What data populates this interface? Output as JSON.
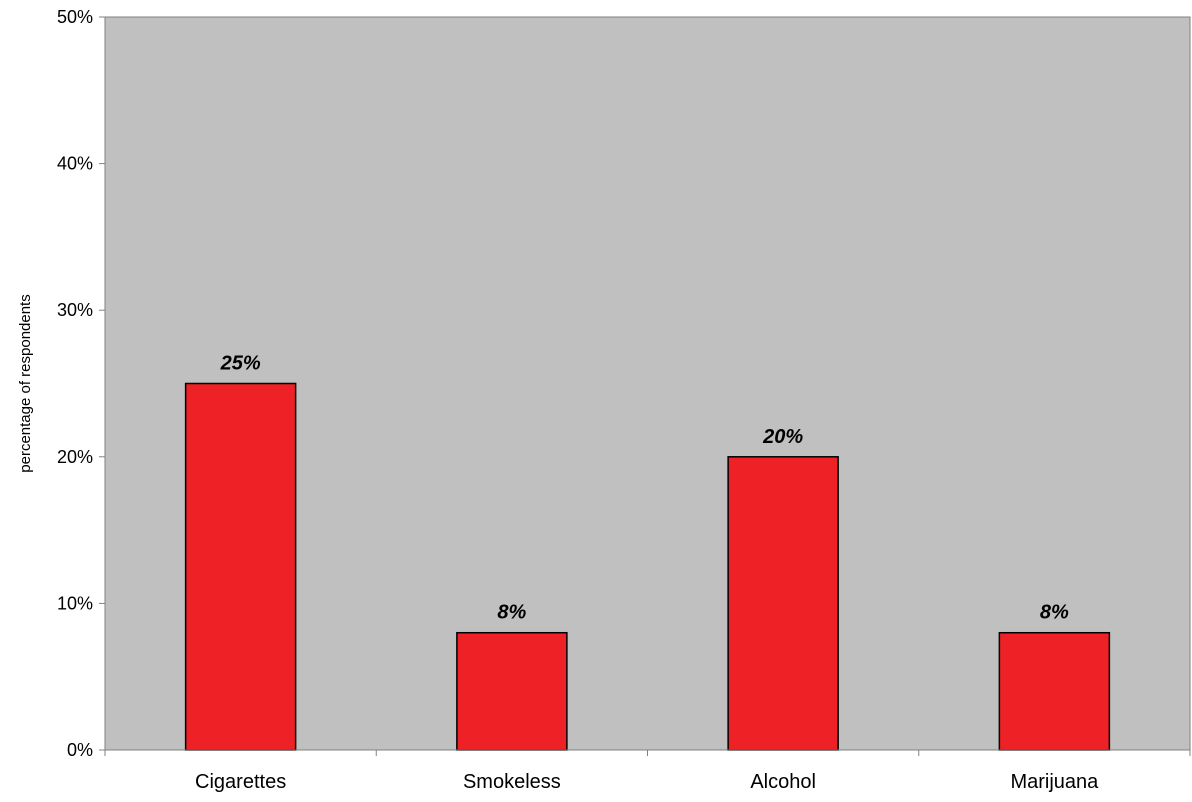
{
  "chart_data": {
    "type": "bar",
    "title": "",
    "xlabel": "",
    "ylabel": "percentage of respondents",
    "categories": [
      "Cigarettes",
      "Smokeless",
      "Alcohol",
      "Marijuana"
    ],
    "values": [
      25,
      8,
      20,
      8
    ],
    "data_labels": [
      "25%",
      "8%",
      "20%",
      "8%"
    ],
    "ylim": [
      0,
      50
    ],
    "y_ticks": [
      0,
      10,
      20,
      30,
      40,
      50
    ],
    "y_tick_labels": [
      "0%",
      "10%",
      "20%",
      "30%",
      "40%",
      "50%"
    ],
    "grid": false,
    "legend": "none",
    "colors": {
      "bar_fill": "#ee2226",
      "bar_stroke": "#000000",
      "plot_background": "#c0c0c0",
      "axis": "#808080"
    }
  }
}
